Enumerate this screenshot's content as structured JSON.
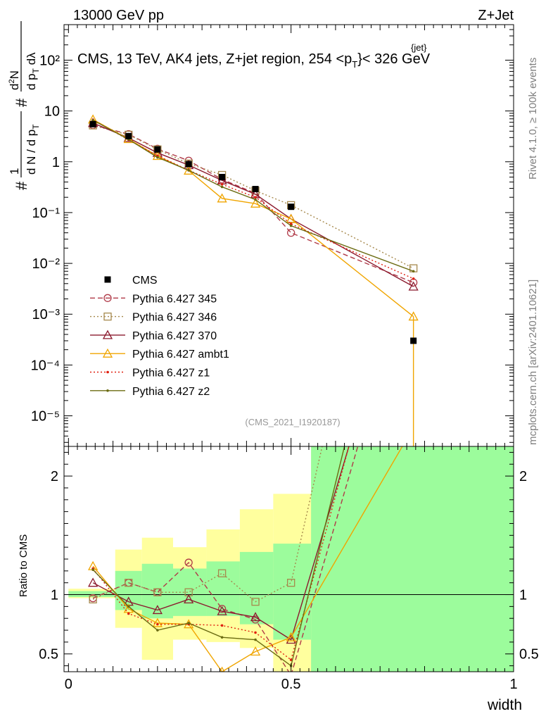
{
  "header": {
    "left": "13000 GeV pp",
    "right": "Z+Jet",
    "plot_title": "CMS, 13 TeV, AK4 jets, Z+jet region, 254 <p",
    "plot_title_sup": "{jet}",
    "plot_title_sub": "T",
    "plot_title_end": "}< 326 GeV",
    "watermark": "(CMS_2021_I1920187)",
    "side_top": "Rivet 4.1.0, ≥ 100k events",
    "side_bottom": "mcplots.cern.ch [arXiv:2401.10621]"
  },
  "chart_data": [
    {
      "type": "line",
      "panel": "main",
      "yscale": "log",
      "ylabel": "1/N dN/dp_T d²N/dp_T dλ",
      "ylim": [
        2.5e-06,
        500
      ],
      "xlim": [
        -0.01,
        1.0
      ],
      "ytick_labels": [
        "10²",
        "10",
        "1",
        "10⁻¹",
        "10⁻²",
        "10⁻³",
        "10⁻⁴",
        "10⁻⁵"
      ],
      "ytick_values": [
        100,
        10,
        1,
        0.1,
        0.01,
        0.001,
        0.0001,
        1e-05
      ],
      "legend_position": "middle-left",
      "data_series": {
        "name": "CMS",
        "color": "#000000",
        "x": [
          0.055,
          0.135,
          0.2,
          0.27,
          0.345,
          0.42,
          0.5,
          0.775
        ],
        "y": [
          5.5,
          3.2,
          1.75,
          0.9,
          0.5,
          0.29,
          0.13,
          0.0003
        ]
      },
      "series": [
        {
          "name": "Pythia 6.427 345",
          "color": "#b03a48",
          "style": "dashed",
          "marker": "circle",
          "x": [
            0.055,
            0.135,
            0.2,
            0.27,
            0.345,
            0.42,
            0.5,
            0.775
          ],
          "y": [
            5.3,
            3.5,
            1.8,
            1.05,
            0.45,
            0.24,
            0.04,
            0.0042
          ]
        },
        {
          "name": "Pythia 6.427 346",
          "color": "#a6894d",
          "style": "dotted",
          "marker": "square",
          "x": [
            0.055,
            0.135,
            0.2,
            0.27,
            0.345,
            0.42,
            0.5,
            0.775
          ],
          "y": [
            5.2,
            3.4,
            1.75,
            0.92,
            0.55,
            0.27,
            0.14,
            0.008
          ]
        },
        {
          "name": "Pythia 6.427 370",
          "color": "#8b1a2e",
          "style": "solid",
          "marker": "triangle",
          "x": [
            0.055,
            0.135,
            0.2,
            0.27,
            0.345,
            0.42,
            0.5,
            0.775
          ],
          "y": [
            5.8,
            2.95,
            1.5,
            0.86,
            0.43,
            0.23,
            0.075,
            0.0035
          ]
        },
        {
          "name": "Pythia 6.427 ambt1",
          "color": "#f0a500",
          "style": "solid",
          "marker": "triangle",
          "x": [
            0.055,
            0.135,
            0.2,
            0.27,
            0.345,
            0.42,
            0.5,
            0.775
          ],
          "y": [
            6.8,
            2.8,
            1.3,
            0.67,
            0.19,
            0.15,
            0.075,
            0.0009
          ]
        },
        {
          "name": "Pythia 6.427 z1",
          "color": "#e02010",
          "style": "dotted",
          "marker": "dot",
          "x": [
            0.055,
            0.135,
            0.2,
            0.27,
            0.345,
            0.42,
            0.5,
            0.775
          ],
          "y": [
            6.7,
            2.7,
            1.32,
            0.68,
            0.36,
            0.2,
            0.06,
            0.005
          ]
        },
        {
          "name": "Pythia 6.427 z2",
          "color": "#6b6b12",
          "style": "solid",
          "marker": "dot",
          "x": [
            0.055,
            0.135,
            0.2,
            0.27,
            0.345,
            0.42,
            0.5,
            0.775
          ],
          "y": [
            6.6,
            2.75,
            1.22,
            0.68,
            0.32,
            0.18,
            0.055,
            0.007
          ]
        }
      ]
    },
    {
      "type": "line",
      "panel": "ratio",
      "ylabel": "Ratio to CMS",
      "xlabel": "width",
      "ylim": [
        0.35,
        2.25
      ],
      "xlim": [
        -0.01,
        1.0
      ],
      "ytick_labels": [
        "0.5",
        "1",
        "2"
      ],
      "ytick_values": [
        0.5,
        1,
        2
      ],
      "xtick_labels": [
        "0",
        "0.5",
        "1"
      ],
      "xtick_values": [
        0,
        0.5,
        1
      ],
      "bands": {
        "edges": [
          0.0,
          0.105,
          0.165,
          0.235,
          0.31,
          0.385,
          0.46,
          0.545,
          1.0
        ],
        "yellow_lo": [
          0.97,
          0.72,
          0.45,
          0.62,
          0.6,
          0.55,
          0.35,
          0.35
        ],
        "yellow_hi": [
          1.05,
          1.38,
          1.48,
          1.4,
          1.55,
          1.72,
          1.85,
          2.25
        ],
        "green_lo": [
          0.98,
          0.87,
          0.8,
          0.82,
          0.82,
          0.75,
          0.62,
          0.35
        ],
        "green_hi": [
          1.03,
          1.2,
          1.26,
          1.22,
          1.28,
          1.36,
          1.43,
          2.25
        ]
      },
      "series": [
        {
          "name": "Pythia 6.427 345",
          "x": [
            0.055,
            0.135,
            0.2,
            0.27,
            0.345,
            0.42,
            0.5,
            0.65
          ],
          "y": [
            0.97,
            1.1,
            1.02,
            1.27,
            0.88,
            0.79,
            0.32,
            2.25
          ]
        },
        {
          "name": "Pythia 6.427 346",
          "x": [
            0.055,
            0.135,
            0.2,
            0.27,
            0.345,
            0.42,
            0.5,
            0.57
          ],
          "y": [
            0.96,
            1.1,
            1.02,
            1.02,
            1.18,
            0.94,
            1.1,
            2.25
          ]
        },
        {
          "name": "Pythia 6.427 370",
          "x": [
            0.055,
            0.135,
            0.2,
            0.27,
            0.345,
            0.42,
            0.5,
            0.63
          ],
          "y": [
            1.1,
            0.94,
            0.87,
            0.96,
            0.86,
            0.81,
            0.62,
            2.25
          ]
        },
        {
          "name": "Pythia 6.427 ambt1",
          "x": [
            0.055,
            0.135,
            0.2,
            0.27,
            0.345,
            0.42,
            0.5,
            0.75
          ],
          "y": [
            1.24,
            0.88,
            0.76,
            0.75,
            0.35,
            0.52,
            0.64,
            2.25
          ]
        },
        {
          "name": "Pythia 6.427 z1",
          "x": [
            0.055,
            0.135,
            0.2,
            0.27,
            0.345,
            0.42,
            0.5,
            0.63
          ],
          "y": [
            1.22,
            0.84,
            0.75,
            0.75,
            0.74,
            0.68,
            0.45,
            2.25
          ]
        },
        {
          "name": "Pythia 6.427 z2",
          "x": [
            0.055,
            0.135,
            0.2,
            0.27,
            0.345,
            0.42,
            0.5,
            0.62
          ],
          "y": [
            1.21,
            0.9,
            0.7,
            0.76,
            0.64,
            0.62,
            0.4,
            2.25
          ]
        }
      ]
    }
  ]
}
